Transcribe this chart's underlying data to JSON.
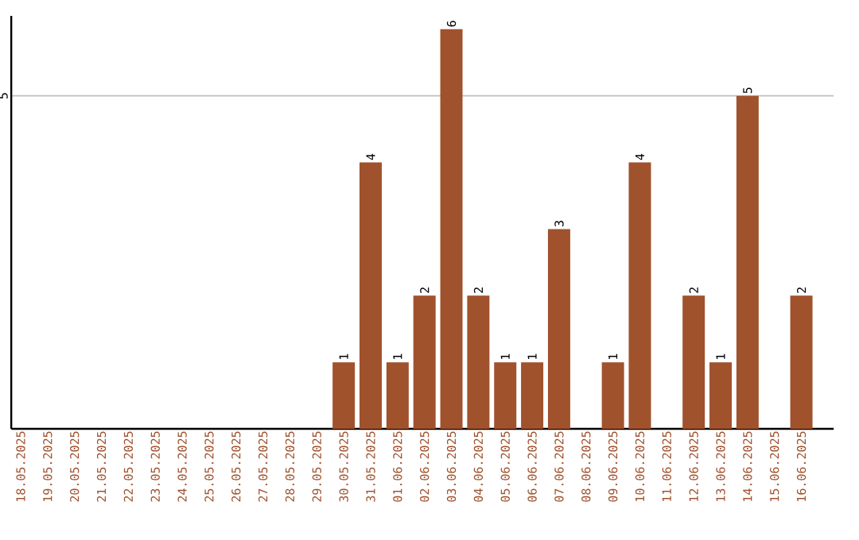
{
  "chart_data": {
    "type": "bar",
    "categories": [
      "18.05.2025",
      "19.05.2025",
      "20.05.2025",
      "21.05.2025",
      "22.05.2025",
      "23.05.2025",
      "24.05.2025",
      "25.05.2025",
      "26.05.2025",
      "27.05.2025",
      "28.05.2025",
      "29.05.2025",
      "30.05.2025",
      "31.05.2025",
      "01.06.2025",
      "02.06.2025",
      "03.06.2025",
      "04.06.2025",
      "05.06.2025",
      "06.06.2025",
      "07.06.2025",
      "08.06.2025",
      "09.06.2025",
      "10.06.2025",
      "11.06.2025",
      "12.06.2025",
      "13.06.2025",
      "14.06.2025",
      "15.06.2025",
      "16.06.2025"
    ],
    "values": [
      null,
      null,
      null,
      null,
      null,
      null,
      null,
      null,
      null,
      null,
      null,
      null,
      1,
      4,
      1,
      2,
      6,
      2,
      1,
      1,
      3,
      null,
      1,
      4,
      null,
      2,
      1,
      5,
      null,
      2
    ],
    "color": "#a0522d",
    "ylim": [
      0,
      6.2
    ],
    "yticks": [
      5
    ],
    "grid": "y",
    "data_labels": true
  }
}
